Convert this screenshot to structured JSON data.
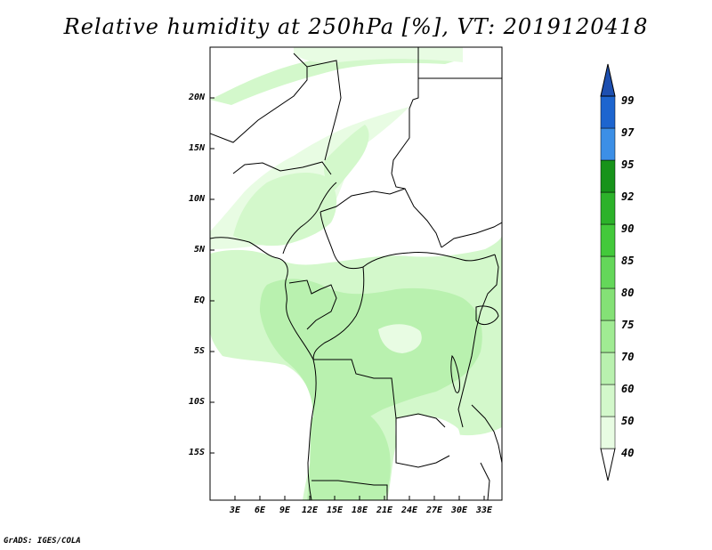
{
  "title": "Relative humidity at 250hPa [%], VT: 2019120418",
  "footer": "GrADS: IGES/COLA",
  "axes": {
    "lat_labels": [
      "20N",
      "15N",
      "10N",
      "5N",
      "EQ",
      "5S",
      "10S",
      "15S"
    ],
    "lon_labels": [
      "3E",
      "6E",
      "9E",
      "12E",
      "15E",
      "18E",
      "21E",
      "24E",
      "27E",
      "30E",
      "33E"
    ]
  },
  "colorbar": {
    "levels": [
      "40",
      "50",
      "60",
      "70",
      "75",
      "80",
      "85",
      "90",
      "92",
      "95",
      "97",
      "99"
    ],
    "colors": [
      "#ffffff",
      "#e8fce3",
      "#d3f8cb",
      "#b9f1af",
      "#a0eb93",
      "#84e176",
      "#64d75a",
      "#43c93b",
      "#2cb22a",
      "#17931a",
      "#3c8fe6",
      "#1d65cf",
      "#1d4fb0"
    ]
  },
  "map": {
    "ocean_color": "#ffffff",
    "land_color": "#ffffff",
    "humidity_shades": [
      "#e8fce3",
      "#d3f8cb",
      "#b9f1af"
    ]
  }
}
